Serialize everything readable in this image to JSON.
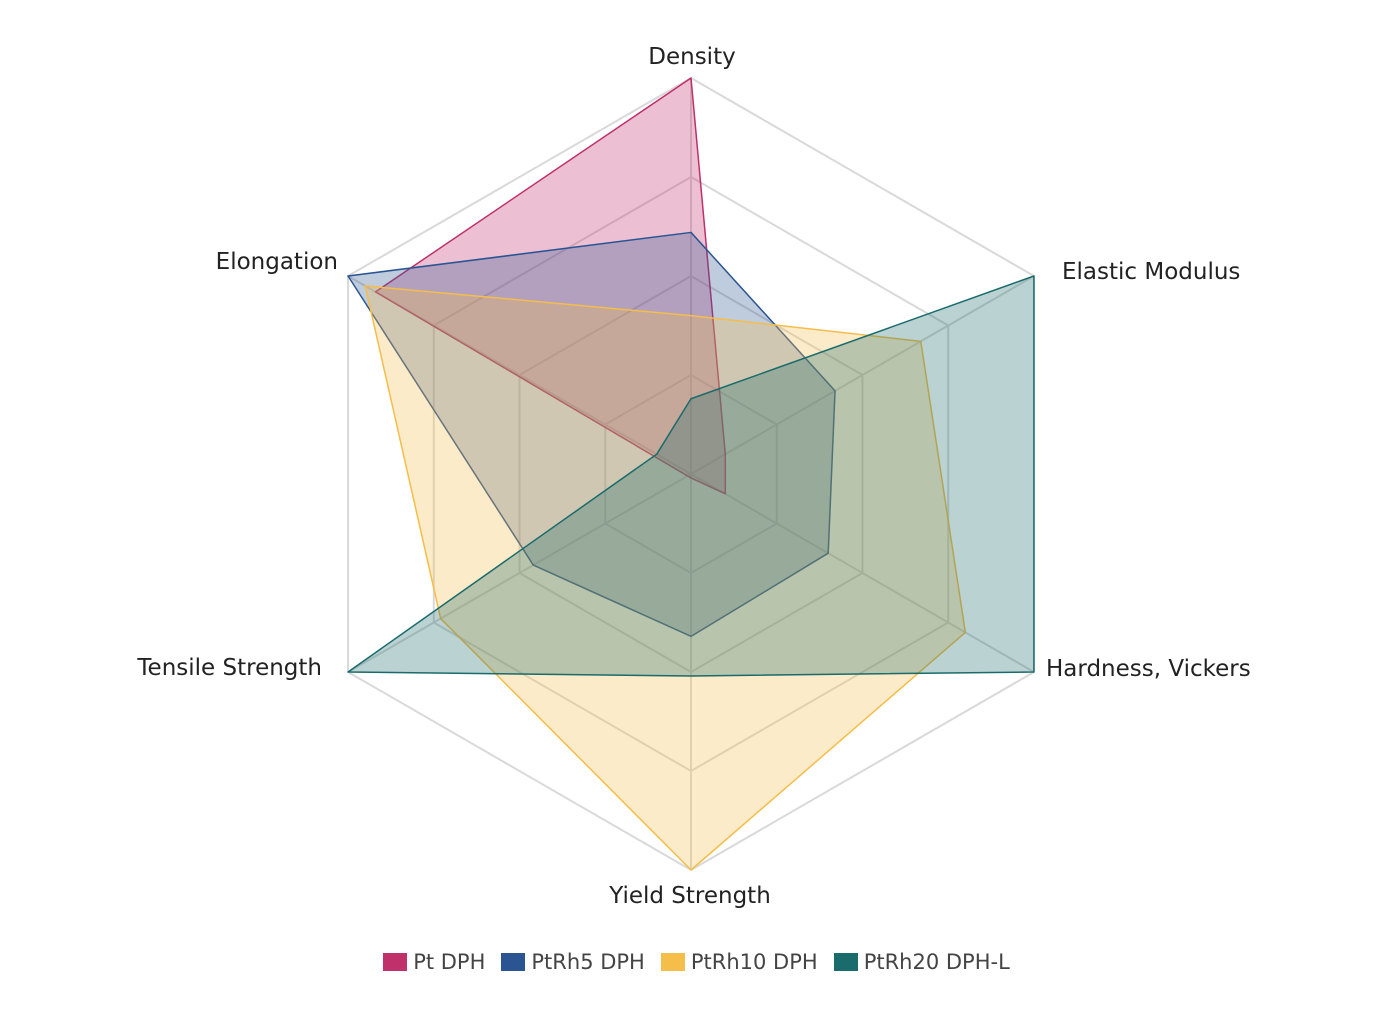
{
  "chart_data": {
    "type": "radar",
    "axes": [
      "Density",
      "Elastic Modulus",
      "Hardness, Vickers",
      "Yield Strength",
      "Tensile Strength",
      "Elongation"
    ],
    "rmax": 1,
    "rings": 4,
    "grid": true,
    "legend_position": "bottom",
    "series": [
      {
        "name": "Pt DPH",
        "color": "#c0306a",
        "values": [
          1.0,
          0.1,
          0.1,
          0.01,
          0.01,
          0.92
        ]
      },
      {
        "name": "PtRh5 DPH",
        "color": "#2b5592",
        "values": [
          0.61,
          0.42,
          0.4,
          0.41,
          0.46,
          1.0
        ]
      },
      {
        "name": "PtRh10 DPH",
        "color": "#f5bd4a",
        "values": [
          0.4,
          0.67,
          0.8,
          1.0,
          0.73,
          0.95
        ]
      },
      {
        "name": "PtRh20 DPH-L",
        "color": "#1a6b6b",
        "values": [
          0.19,
          1.0,
          1.0,
          0.51,
          1.0,
          0.1
        ]
      }
    ]
  }
}
